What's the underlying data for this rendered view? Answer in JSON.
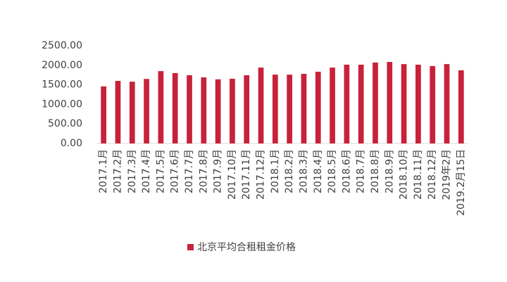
{
  "chart_data": {
    "type": "bar",
    "categories": [
      "2017.1月",
      "2017.2月",
      "2017.3月",
      "2017.4月",
      "2017.5月",
      "2017.6月",
      "2017.7月",
      "2017.8月",
      "2017.9月",
      "2017.10月",
      "2017.11月",
      "2017.12月",
      "2018.1月",
      "2018.2月",
      "2018.3月",
      "2018.4月",
      "2018.5月",
      "2018.6月",
      "2018.7月",
      "2018.8月",
      "2018.9月",
      "2018.10月",
      "2018.11月",
      "2018.12月",
      "2019年2月",
      "2019.2月15日"
    ],
    "series": [
      {
        "name": "北京平均合租租金价格",
        "color": "#c8213a",
        "values": [
          1460,
          1600,
          1580,
          1650,
          1850,
          1800,
          1745,
          1690,
          1640,
          1655,
          1745,
          1940,
          1760,
          1760,
          1780,
          1835,
          1940,
          2015,
          2015,
          2070,
          2085,
          2030,
          2015,
          1980,
          2030,
          1870
        ]
      }
    ],
    "ylim": [
      0,
      2500
    ],
    "yticks": [
      {
        "value": 0,
        "label": "0.00"
      },
      {
        "value": 500,
        "label": "500.00"
      },
      {
        "value": 1000,
        "label": "1000.00"
      },
      {
        "value": 1500,
        "label": "1500.00"
      },
      {
        "value": 2000,
        "label": "2000.00"
      },
      {
        "value": 2500,
        "label": "2500.00"
      }
    ],
    "legend": "bottom"
  }
}
